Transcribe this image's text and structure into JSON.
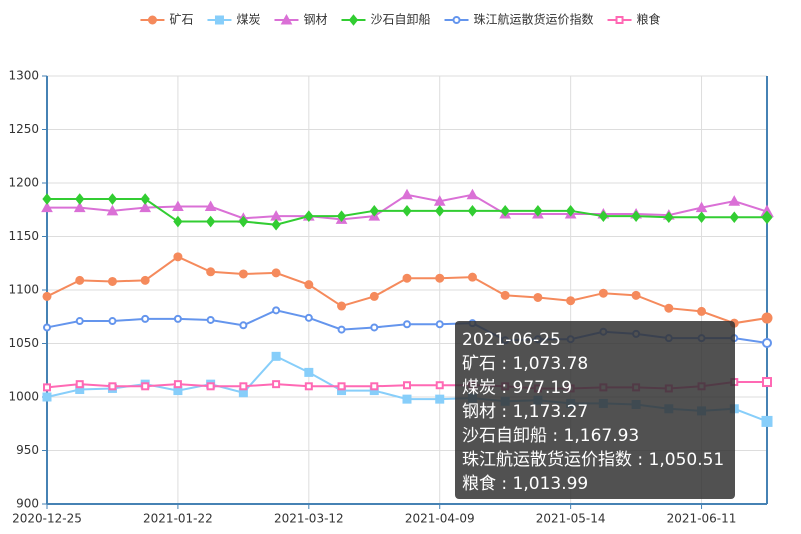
{
  "chart_data": {
    "type": "line",
    "categories": [
      "2020-12-25",
      null,
      null,
      null,
      "2021-01-22",
      null,
      null,
      null,
      "2021-03-12",
      null,
      null,
      null,
      "2021-04-09",
      null,
      null,
      null,
      "2021-05-14",
      null,
      null,
      null,
      "2021-06-11",
      null,
      null
    ],
    "series": [
      {
        "name": "矿石",
        "color": "#f58a5c",
        "marker": "circle",
        "values": [
          1094,
          1109,
          1108,
          1109,
          1131,
          1117,
          1115,
          1116,
          1105,
          1085,
          1094,
          1111,
          1111,
          1112,
          1095,
          1093,
          1090,
          1097,
          1095,
          1083,
          1080,
          1069,
          1073.78
        ],
        "value_labels": [
          null,
          null,
          null,
          null,
          null,
          null,
          null,
          null,
          null,
          null,
          null,
          null,
          null,
          null,
          null,
          null,
          null,
          null,
          null,
          null,
          null,
          null,
          "1,073.78"
        ]
      },
      {
        "name": "煤炭",
        "color": "#87cefa",
        "marker": "square",
        "values": [
          1000,
          1007,
          1008,
          1012,
          1006,
          1012,
          1004,
          1038,
          1023,
          1006,
          1006,
          998,
          998,
          999,
          996,
          997,
          994,
          994,
          993,
          989,
          987,
          989,
          977.19
        ],
        "value_labels": [
          null,
          null,
          null,
          null,
          null,
          null,
          null,
          null,
          null,
          null,
          null,
          null,
          null,
          null,
          null,
          null,
          null,
          null,
          null,
          null,
          null,
          null,
          "977.19"
        ]
      },
      {
        "name": "钢材",
        "color": "#da70d6",
        "marker": "triangle",
        "values": [
          1177,
          1177,
          1174,
          1177,
          1178,
          1178,
          1167,
          1169,
          1169,
          1166,
          1169,
          1189,
          1183,
          1189,
          1171,
          1171,
          1171,
          1171,
          1171,
          1170,
          1177,
          1183,
          1173.27
        ],
        "value_labels": [
          null,
          null,
          null,
          null,
          null,
          null,
          null,
          null,
          null,
          null,
          null,
          null,
          null,
          null,
          null,
          null,
          null,
          null,
          null,
          null,
          null,
          null,
          "1,173.27"
        ]
      },
      {
        "name": "沙石自卸船",
        "color": "#32cd32",
        "marker": "diamond",
        "values": [
          1185,
          1185,
          1185,
          1185,
          1164,
          1164,
          1164,
          1161,
          1169,
          1169,
          1174,
          1174,
          1174,
          1174,
          1174,
          1174,
          1174,
          1169,
          1169,
          1168,
          1168,
          1168,
          1167.93
        ],
        "value_labels": [
          null,
          null,
          null,
          null,
          null,
          null,
          null,
          null,
          null,
          null,
          null,
          null,
          null,
          null,
          null,
          null,
          null,
          null,
          null,
          null,
          null,
          null,
          "1,167.93"
        ]
      },
      {
        "name": "珠江航运散货运价指数",
        "color": "#6495ed",
        "marker": "open-circle",
        "values": [
          1065,
          1071,
          1071,
          1073,
          1073,
          1072,
          1067,
          1081,
          1074,
          1063,
          1065,
          1068,
          1068,
          1069,
          1053,
          1054,
          1054,
          1061,
          1059,
          1055,
          1055,
          1055,
          1050.51
        ],
        "value_labels": [
          null,
          null,
          null,
          null,
          null,
          null,
          null,
          null,
          null,
          null,
          null,
          null,
          null,
          null,
          null,
          null,
          null,
          null,
          null,
          null,
          null,
          null,
          "1,050.51"
        ]
      },
      {
        "name": "粮食",
        "color": "#ff69b4",
        "marker": "open-square",
        "values": [
          1009,
          1012,
          1010,
          1010,
          1012,
          1010,
          1010,
          1012,
          1010,
          1010,
          1010,
          1011,
          1011,
          1011,
          1010,
          1008,
          1008,
          1009,
          1009,
          1008,
          1010,
          1014,
          1013.99
        ],
        "value_labels": [
          null,
          null,
          null,
          null,
          null,
          null,
          null,
          null,
          null,
          null,
          null,
          null,
          null,
          null,
          null,
          null,
          null,
          null,
          null,
          null,
          null,
          null,
          "1,013.99"
        ]
      }
    ],
    "ylim": [
      900,
      1300
    ],
    "yticks": [
      900,
      950,
      1000,
      1050,
      1100,
      1150,
      1200,
      1250,
      1300
    ],
    "grid": true,
    "legend": "top",
    "tooltip": {
      "title": "2021-06-25",
      "separator": " : "
    }
  }
}
